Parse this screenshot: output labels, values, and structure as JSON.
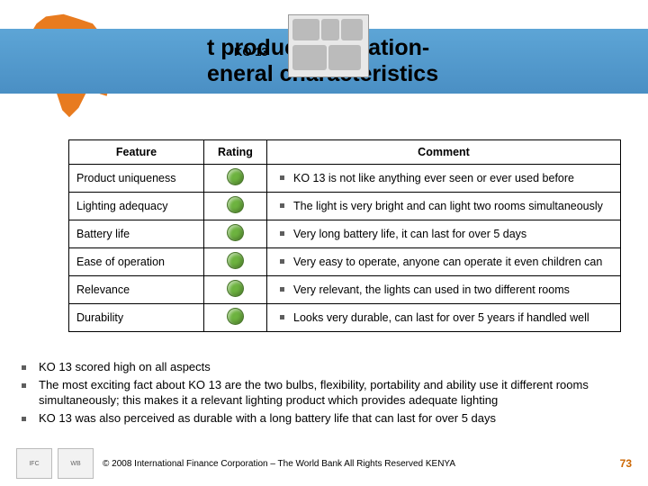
{
  "header": {
    "title_line1": "t product evaluation-",
    "title_line2": "eneral characteristics",
    "product_label": "KO 13"
  },
  "table": {
    "columns": {
      "feature": "Feature",
      "rating": "Rating",
      "comment": "Comment"
    },
    "rating_color": "#6db33f",
    "rows": [
      {
        "feature": "Product uniqueness",
        "comment": "KO 13 is not like anything ever seen or ever used before"
      },
      {
        "feature": "Lighting adequacy",
        "comment": "The light is very bright and can light two rooms simultaneously"
      },
      {
        "feature": "Battery life",
        "comment": "Very long battery life, it can last for over 5 days"
      },
      {
        "feature": "Ease of operation",
        "comment": "Very easy to operate, anyone can operate it even children can"
      },
      {
        "feature": "Relevance",
        "comment": " Very relevant, the lights can used in two different rooms"
      },
      {
        "feature": "Durability",
        "comment": "Looks very durable, can last for over 5 years if handled well"
      }
    ]
  },
  "summary": [
    "KO 13 scored high on all aspects",
    "The most exciting fact about KO 13 are the two bulbs, flexibility, portability and ability use it different rooms simultaneously; this makes it a relevant lighting product which provides adequate lighting",
    "KO 13 was also perceived as durable with a long battery life that can last for over 5 days"
  ],
  "footer": {
    "copyright": "© 2008 International Finance Corporation – The World Bank All Rights Reserved   KENYA",
    "page": "73",
    "logo1": "IFC",
    "logo2": "WB"
  },
  "colors": {
    "accent_orange": "#e87b1f",
    "band_top": "#5da5d6",
    "band_bottom": "#4a8fc4"
  }
}
